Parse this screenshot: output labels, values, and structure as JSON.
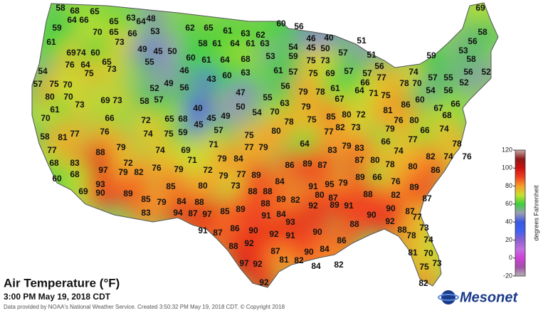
{
  "map": {
    "title": "Air Temperature (°F)",
    "subtitle": "3:00 PM May 19, 2018 CDT",
    "credit": "Data provided by NOAA's National Weather Service. Created 3:50:32 PM May 19, 2018 CDT. © Copyright 2018",
    "logo": "Mesonet",
    "colorbar": {
      "label": "degrees Fahrenheit",
      "lim": [
        -20,
        120
      ],
      "ticks": [
        -20,
        0,
        20,
        40,
        60,
        80,
        100,
        120
      ],
      "colors": [
        "#b4b4b4",
        "#a050a8",
        "#d040d8",
        "#c070e0",
        "#8a60d0",
        "#4060f0",
        "#3a58e0",
        "#9c9cb4",
        "#3cd03c",
        "#c8e030",
        "#f5a028",
        "#f04020",
        "#cc1010",
        "#8c1818",
        "#c8a8a8"
      ]
    },
    "temperatures": [
      58,
      68,
      65,
      64,
      66,
      65,
      63,
      64,
      48,
      59,
      70,
      65,
      66,
      53,
      61,
      73,
      49,
      69,
      74,
      60,
      65,
      55,
      45,
      50,
      54,
      76,
      64,
      73,
      75,
      57,
      75,
      70,
      46,
      52,
      49,
      80,
      70,
      61,
      69,
      73,
      73,
      58,
      57,
      56,
      70,
      66,
      72,
      65,
      68,
      40,
      45,
      49,
      58,
      81,
      77,
      76,
      74,
      75,
      59,
      45,
      57,
      77,
      88,
      79,
      74,
      69,
      71,
      68,
      83,
      97,
      72,
      76,
      79,
      71,
      60,
      68,
      93,
      79,
      82,
      85,
      69,
      90,
      89,
      85,
      79,
      84,
      88,
      83,
      94,
      87,
      97,
      85,
      89,
      62,
      65,
      61,
      63,
      62,
      60,
      56,
      40,
      46,
      58,
      61,
      64,
      61,
      63,
      54,
      45,
      50,
      57,
      51,
      51,
      60,
      61,
      64,
      68,
      53,
      59,
      75,
      73,
      56,
      57,
      43,
      60,
      63,
      61,
      57,
      75,
      69,
      57,
      66,
      77,
      74,
      47,
      55,
      56,
      79,
      78,
      61,
      64,
      71,
      78,
      70,
      50,
      54,
      70,
      63,
      79,
      67,
      75,
      86,
      60,
      75,
      80,
      78,
      75,
      85,
      80,
      72,
      81,
      76,
      80,
      79,
      84,
      77,
      79,
      86,
      64,
      77,
      82,
      73,
      79,
      77,
      67,
      66,
      68,
      74,
      78,
      83,
      79,
      83,
      66,
      74,
      82,
      74,
      76,
      72,
      79,
      77,
      89,
      89,
      87,
      87,
      80,
      78,
      80,
      86,
      80,
      73,
      88,
      88,
      84,
      91,
      95,
      79,
      89,
      66,
      76,
      89,
      88,
      89,
      82,
      80,
      87,
      88,
      82,
      87,
      91,
      84,
      92,
      89,
      91,
      90,
      87,
      91,
      87,
      86,
      90,
      92,
      93,
      90,
      88,
      90,
      92,
      77,
      88,
      73,
      88,
      92,
      91,
      86,
      78,
      74,
      81,
      70,
      97,
      92,
      87,
      81,
      82,
      90,
      84,
      84,
      82,
      92,
      75,
      73,
      82,
      69,
      58,
      56,
      53,
      59,
      58,
      56,
      52,
      52,
      55,
      57,
      54,
      56,
      66
    ]
  }
}
